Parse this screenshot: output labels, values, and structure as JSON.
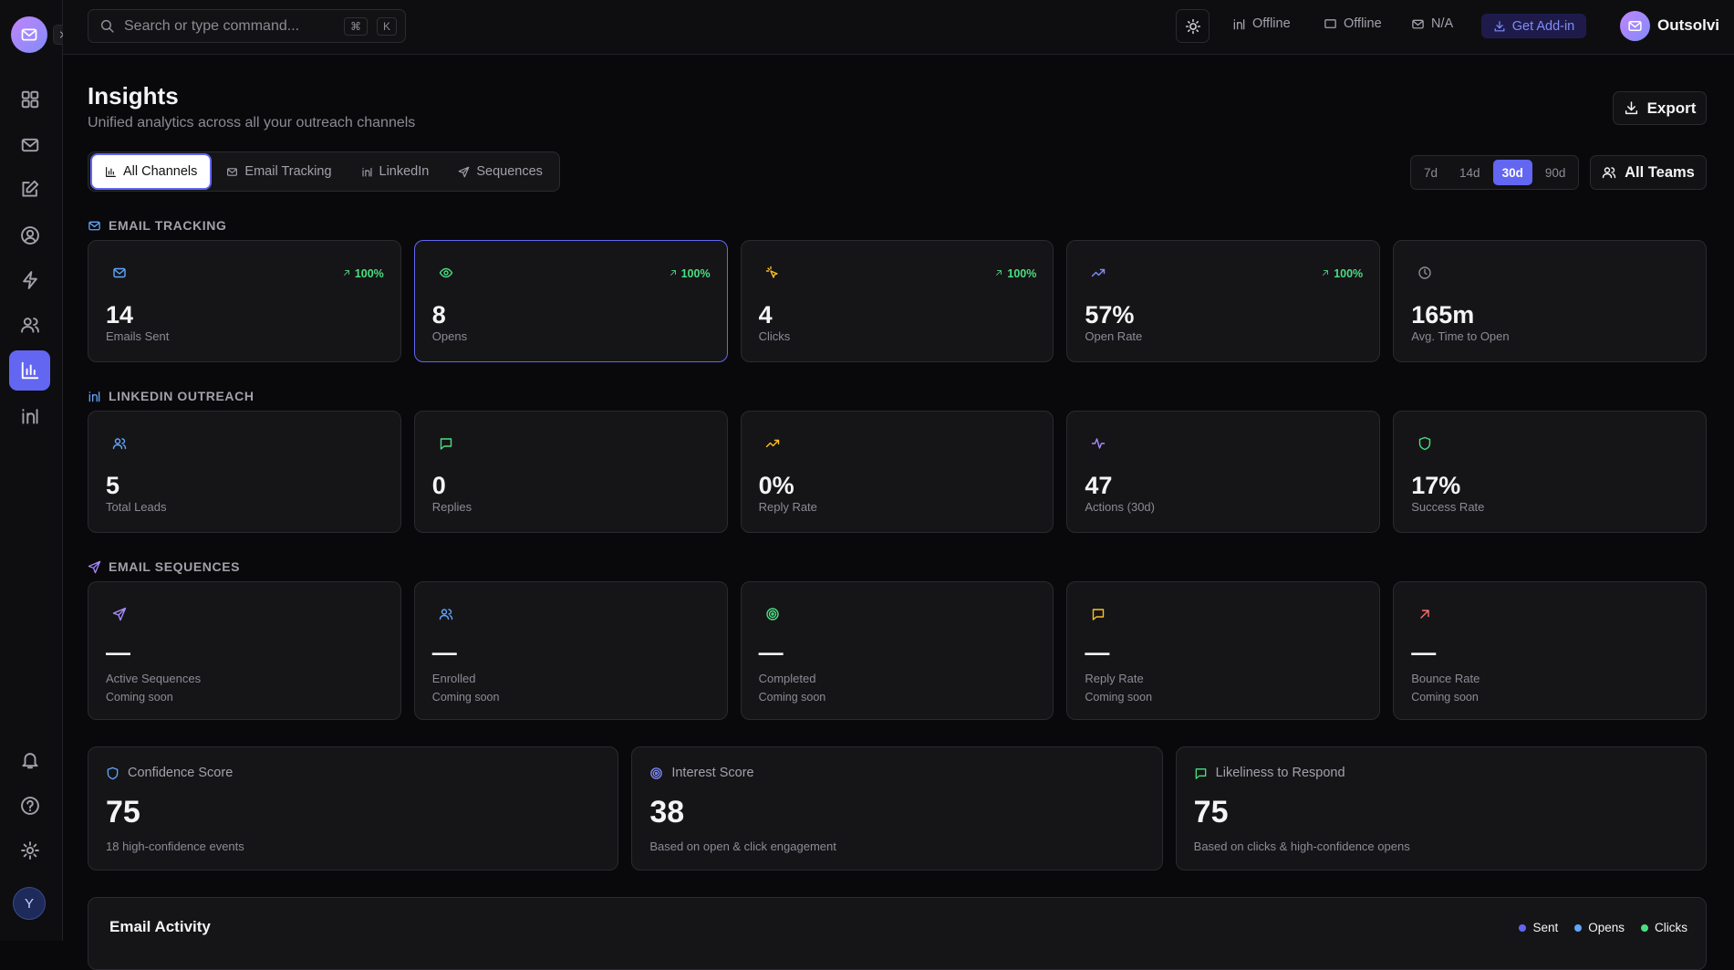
{
  "app": {
    "search_placeholder": "Search or type command...",
    "shortcut": [
      "⌘",
      "K"
    ],
    "status": [
      "Offline",
      "Offline",
      "N/A"
    ],
    "addin": "Get Add-in",
    "brand": "Outsolvi",
    "avatar": "Y"
  },
  "header": {
    "title": "Insights",
    "subtitle": "Unified analytics across all your outreach channels",
    "export": "Export"
  },
  "tabs": [
    "All Channels",
    "Email Tracking",
    "LinkedIn",
    "Sequences"
  ],
  "ranges": [
    "7d",
    "14d",
    "30d",
    "90d"
  ],
  "teams": "All Teams",
  "sections": [
    {
      "title": "EMAIL TRACKING",
      "cards": [
        {
          "value": "14",
          "label": "Emails Sent",
          "change": "100%"
        },
        {
          "value": "8",
          "label": "Opens",
          "change": "100%"
        },
        {
          "value": "4",
          "label": "Clicks",
          "change": "100%"
        },
        {
          "value": "57%",
          "label": "Open Rate",
          "change": "100%"
        },
        {
          "value": "165m",
          "label": "Avg. Time to Open"
        }
      ]
    },
    {
      "title": "LINKEDIN OUTREACH",
      "cards": [
        {
          "value": "5",
          "label": "Total Leads"
        },
        {
          "value": "0",
          "label": "Replies"
        },
        {
          "value": "0%",
          "label": "Reply Rate"
        },
        {
          "value": "47",
          "label": "Actions (30d)"
        },
        {
          "value": "17%",
          "label": "Success Rate"
        }
      ]
    },
    {
      "title": "EMAIL SEQUENCES",
      "cards": [
        {
          "value": "—",
          "label": "Active Sequences",
          "note": "Coming soon"
        },
        {
          "value": "—",
          "label": "Enrolled",
          "note": "Coming soon"
        },
        {
          "value": "—",
          "label": "Completed",
          "note": "Coming soon"
        },
        {
          "value": "—",
          "label": "Reply Rate",
          "note": "Coming soon"
        },
        {
          "value": "—",
          "label": "Bounce Rate",
          "note": "Coming soon"
        }
      ]
    }
  ],
  "scores": [
    {
      "title": "Confidence Score",
      "value": "75",
      "note": "18 high-confidence events"
    },
    {
      "title": "Interest Score",
      "value": "38",
      "note": "Based on open & click engagement"
    },
    {
      "title": "Likeliness to Respond",
      "value": "75",
      "note": "Based on clicks & high-confidence opens"
    }
  ],
  "activity": {
    "title": "Email Activity",
    "legend": [
      "Sent",
      "Opens",
      "Clicks"
    ]
  }
}
